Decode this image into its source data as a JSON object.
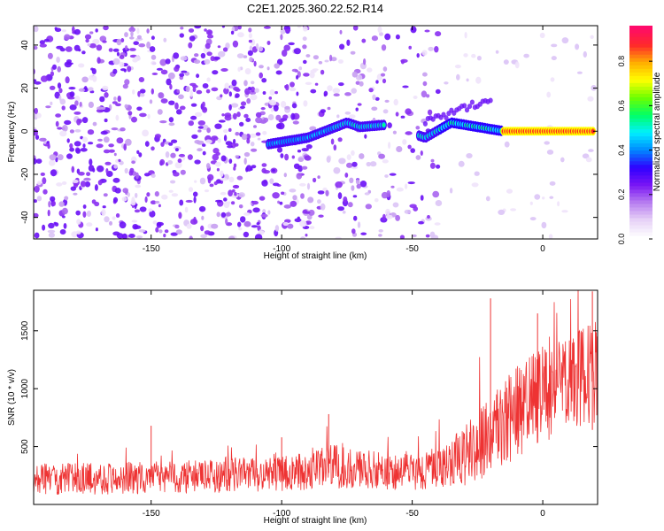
{
  "title": "C2E1.2025.360.22.52.R14",
  "chart_data": [
    {
      "type": "heatmap",
      "name": "spectrogram",
      "xlabel": "Height of straight line (km)",
      "ylabel": "Frequency (Hz)",
      "xlim": [
        -195,
        21
      ],
      "ylim": [
        -50,
        49
      ],
      "xticks": [
        -150,
        -100,
        -50,
        0
      ],
      "yticks": [
        -40,
        -20,
        0,
        20,
        40
      ],
      "colorbar": {
        "label": "Normalized spectral amplitude",
        "range": [
          0.0,
          0.96
        ],
        "ticks": [
          0.0,
          0.2,
          0.4,
          0.6,
          0.8
        ],
        "colors": [
          "#ffffff",
          "#e7d2f7",
          "#b77ef0",
          "#7a16f4",
          "#2f00ff",
          "#0088ff",
          "#00f0ff",
          "#00ff66",
          "#6cff00",
          "#ffff00",
          "#ffae00",
          "#ff2a2a",
          "#ff0a6a"
        ]
      },
      "ridge": {
        "note": "bright tone drifting from about -5 Hz near -105 km to ~0 Hz near 0 km",
        "x": [
          -105,
          -90,
          -75,
          -70,
          -60,
          -45,
          -35,
          -25,
          -15,
          0,
          20
        ],
        "y": [
          -6,
          -3,
          4,
          2,
          3,
          -3,
          4,
          2,
          0,
          0,
          0
        ]
      }
    },
    {
      "type": "line",
      "name": "snr",
      "xlabel": "Height of straight line (km)",
      "ylabel": "SNR (10 * v/v)",
      "xlim": [
        -195,
        21
      ],
      "ylim": [
        0,
        1850
      ],
      "xticks": [
        -150,
        -100,
        -50,
        0
      ],
      "yticks": [
        500,
        1000,
        1500
      ],
      "color": "#ee3333",
      "trend": {
        "x": [
          -195,
          -150,
          -100,
          -80,
          -60,
          -40,
          -30,
          -20,
          -10,
          0,
          10,
          21
        ],
        "mean": [
          220,
          230,
          260,
          330,
          280,
          300,
          420,
          600,
          800,
          950,
          1050,
          1150
        ],
        "spread": [
          140,
          140,
          150,
          190,
          160,
          170,
          260,
          360,
          400,
          420,
          430,
          440
        ]
      },
      "peaks": [
        {
          "x": -150,
          "y": 680
        },
        {
          "x": -100,
          "y": 580
        },
        {
          "x": -82,
          "y": 780
        },
        {
          "x": -20,
          "y": 1780
        },
        {
          "x": -2,
          "y": 1650
        },
        {
          "x": 19,
          "y": 1840
        }
      ]
    }
  ]
}
